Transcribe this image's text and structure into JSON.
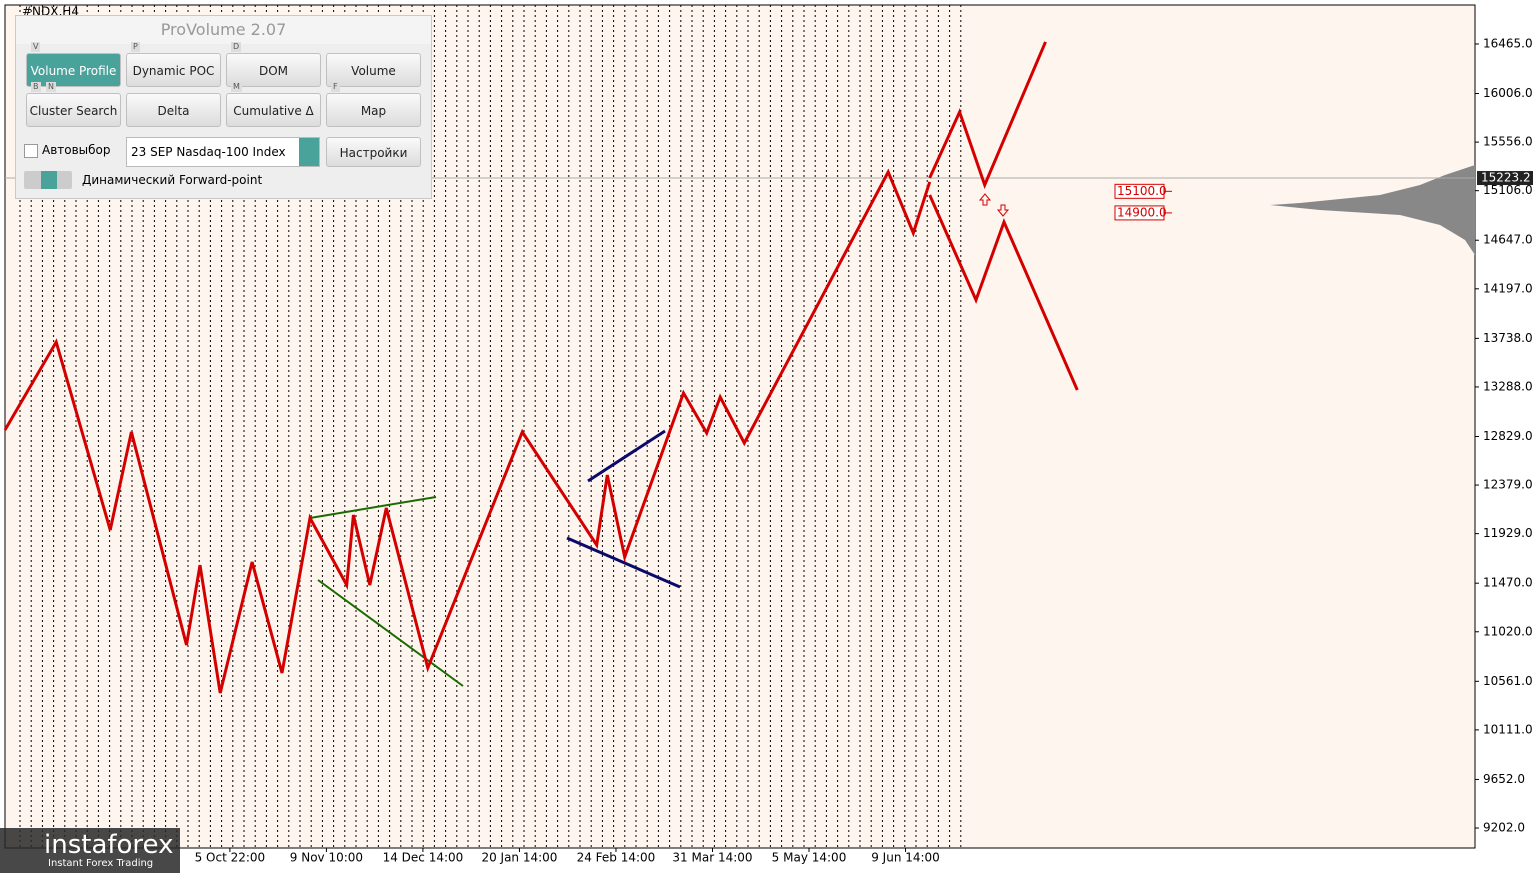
{
  "panel": {
    "title": "ProVolume 2.07",
    "buttons": [
      {
        "label": "Volume Profile",
        "keys": [
          "V"
        ]
      },
      {
        "label": "Dynamic POC",
        "keys": [
          "P"
        ]
      },
      {
        "label": "DOM",
        "keys": [
          "D"
        ]
      },
      {
        "label": "Volume",
        "keys": []
      },
      {
        "label": "Cluster Search",
        "keys": [
          "B",
          "N"
        ]
      },
      {
        "label": "Delta",
        "keys": []
      },
      {
        "label": "Cumulative Δ",
        "keys": [
          "M"
        ]
      },
      {
        "label": "Map",
        "keys": [
          "F"
        ]
      }
    ],
    "checkbox": "Автовыбор",
    "instrument": "23 SEP Nasdaq-100 Index",
    "settings": "Настройки",
    "toggle": "Динамический Forward-point"
  },
  "chart_data": {
    "type": "line",
    "title": "#NDX,H4",
    "xlim": [
      -2.33,
      12.9
    ],
    "xticks": [
      {
        "value": 0,
        "label": "5 Oct 22:00"
      },
      {
        "value": 1,
        "label": "9 Nov 10:00"
      },
      {
        "value": 2,
        "label": "14 Dec 14:00"
      },
      {
        "value": 3,
        "label": "20 Jan 14:00"
      },
      {
        "value": 4,
        "label": "24 Feb 14:00"
      },
      {
        "value": 5,
        "label": "31 Mar 14:00"
      },
      {
        "value": 6,
        "label": "5 May 14:00"
      },
      {
        "value": 7,
        "label": "9 Jun 14:00"
      }
    ],
    "ylim": [
      9017,
      16826
    ],
    "yticks": [
      {
        "value": 16465,
        "label": "16465.0"
      },
      {
        "value": 16006,
        "label": "16006.0"
      },
      {
        "value": 15556,
        "label": "15556.0"
      },
      {
        "value": 15106,
        "label": "15106.0"
      },
      {
        "value": 14647,
        "label": "14647.0"
      },
      {
        "value": 14197,
        "label": "14197.0"
      },
      {
        "value": 13738,
        "label": "13738.0"
      },
      {
        "value": 13288,
        "label": "13288.0"
      },
      {
        "value": 12829,
        "label": "12829.0"
      },
      {
        "value": 12379,
        "label": "12379.0"
      },
      {
        "value": 11929,
        "label": "11929.0"
      },
      {
        "value": 11470,
        "label": "11470.0"
      },
      {
        "value": 11020,
        "label": "11020.0"
      },
      {
        "value": 10561,
        "label": "10561.0"
      },
      {
        "value": 10111,
        "label": "10111.0"
      },
      {
        "value": 9652,
        "label": "9652.0"
      },
      {
        "value": 9202,
        "label": "9202.0"
      }
    ],
    "series": [
      {
        "color": "#d40000",
        "x": [
          -2.33,
          -1.8,
          -1.24,
          -1.02,
          -0.45,
          -0.31,
          -0.1,
          0.23,
          0.54,
          0.83,
          1.21,
          1.28,
          1.45,
          1.62,
          2.05,
          3.03,
          3.8,
          3.91,
          4.09,
          4.7,
          4.94,
          5.08,
          5.33,
          6.82,
          7.08,
          7.25
        ],
        "values": [
          12889,
          13704,
          11963,
          12871,
          10897,
          11638,
          10453,
          11666,
          10638,
          12074,
          11453,
          12102,
          11453,
          12167,
          10684,
          12871,
          11824,
          12472,
          11713,
          13232,
          12861,
          13195,
          12769,
          15279,
          14714,
          15187
        ]
      },
      {
        "color": "#d40000",
        "x": [
          7.25,
          7.56,
          7.82,
          8.45
        ],
        "values": [
          15224,
          15835,
          15159,
          16484
        ]
      },
      {
        "color": "#d40000",
        "x": [
          7.25,
          7.73,
          8.02,
          8.78
        ],
        "values": [
          15066,
          14093,
          14816,
          13260
        ]
      }
    ],
    "levels": [
      {
        "value": 15100,
        "label": "15100.0"
      },
      {
        "value": 14900,
        "label": "14900.0"
      }
    ],
    "current_price": {
      "value": 15223.2,
      "label": "15223.2"
    }
  },
  "logo": {
    "name": "instaforex",
    "tagline": "Instant Forex Trading"
  }
}
